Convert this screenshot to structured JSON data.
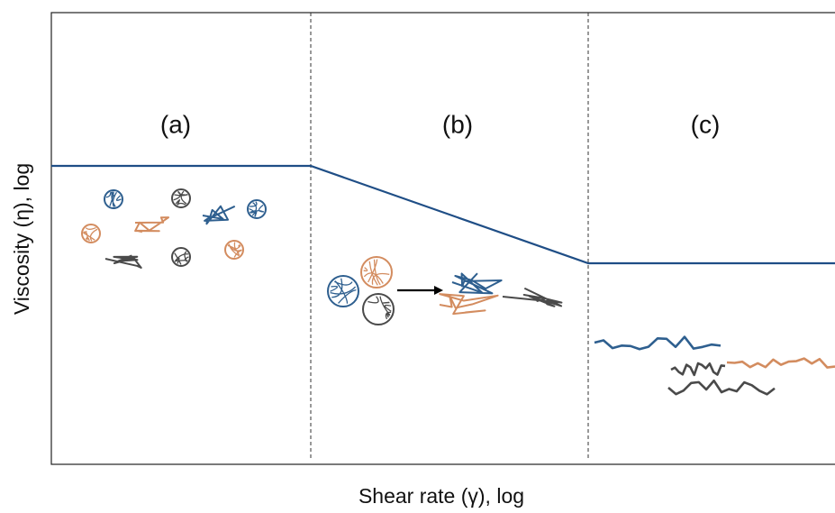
{
  "regions": [
    {
      "label": "(a)"
    },
    {
      "label": "(b)"
    },
    {
      "label": "(c)"
    }
  ],
  "axes": {
    "x_label": "Shear rate (γ), log",
    "y_label": "Viscosity (η), log"
  }
}
